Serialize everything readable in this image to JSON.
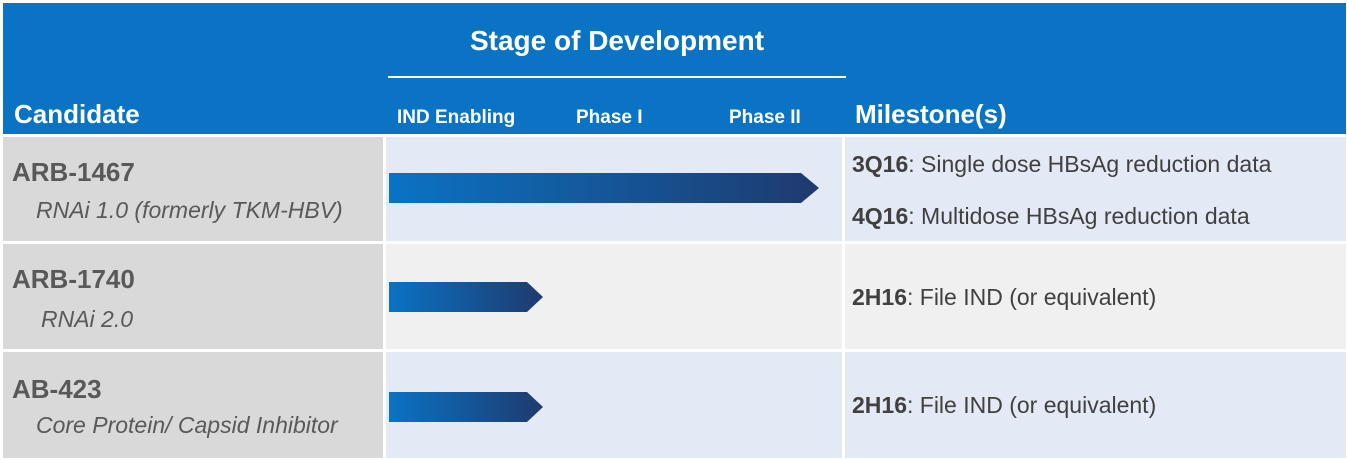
{
  "header": {
    "stage_title": "Stage of Development",
    "candidate_label": "Candidate",
    "milestone_label": "Milestone(s)",
    "phases": [
      "IND Enabling",
      "Phase I",
      "Phase II"
    ]
  },
  "rows": [
    {
      "name": "ARB-1467",
      "description": "RNAi 1.0 (formerly TKM-HBV)",
      "stage_reached": "Phase II",
      "milestones": [
        {
          "code": "3Q16",
          "text": ": Single dose HBsAg reduction data"
        },
        {
          "code": "4Q16",
          "text": ": Multidose HBsAg reduction data"
        }
      ]
    },
    {
      "name": "ARB-1740",
      "description": "RNAi 2.0",
      "stage_reached": "IND Enabling",
      "milestones": [
        {
          "code": "2H16",
          "text": ": File IND (or equivalent)"
        }
      ]
    },
    {
      "name": "AB-423",
      "description": "Core Protein/ Capsid Inhibitor",
      "stage_reached": "IND Enabling",
      "milestones": [
        {
          "code": "2H16",
          "text": ": File IND (or equivalent)"
        }
      ]
    }
  ],
  "colors": {
    "header_bg": "#0a73c4",
    "bar_start": "#0a73c4",
    "bar_end": "#1f3a6e"
  }
}
